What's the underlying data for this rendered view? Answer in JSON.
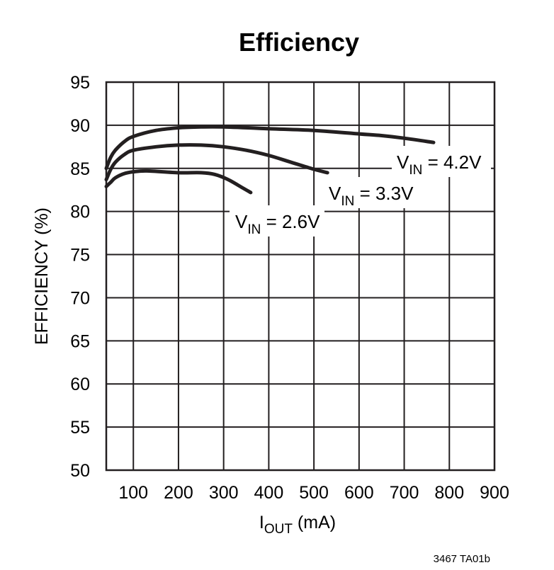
{
  "chart_data": {
    "type": "line",
    "title": "Efficiency",
    "xlabel": {
      "main": "I",
      "sub": "OUT",
      "unit": " (mA)"
    },
    "ylabel": "EFFICIENCY (%)",
    "xlim": [
      40,
      900
    ],
    "ylim": [
      50,
      95
    ],
    "xticks": [
      100,
      200,
      300,
      400,
      500,
      600,
      700,
      800,
      900
    ],
    "yticks": [
      50,
      55,
      60,
      65,
      70,
      75,
      80,
      85,
      90,
      95
    ],
    "grid": true,
    "series": [
      {
        "name": "V_IN = 4.2V",
        "label": {
          "main": "V",
          "sub": "IN",
          "value": " = 4.2V"
        },
        "points": [
          [
            40,
            85.0
          ],
          [
            50,
            86.3
          ],
          [
            60,
            87.1
          ],
          [
            80,
            88.1
          ],
          [
            100,
            88.7
          ],
          [
            150,
            89.4
          ],
          [
            200,
            89.7
          ],
          [
            250,
            89.8
          ],
          [
            300,
            89.8
          ],
          [
            400,
            89.6
          ],
          [
            500,
            89.4
          ],
          [
            600,
            89.0
          ],
          [
            650,
            88.8
          ],
          [
            700,
            88.5
          ],
          [
            765,
            88.0
          ]
        ]
      },
      {
        "name": "V_IN = 3.3V",
        "label": {
          "main": "V",
          "sub": "IN",
          "value": " = 3.3V"
        },
        "points": [
          [
            40,
            83.7
          ],
          [
            50,
            84.9
          ],
          [
            60,
            85.7
          ],
          [
            80,
            86.6
          ],
          [
            100,
            87.1
          ],
          [
            150,
            87.5
          ],
          [
            200,
            87.7
          ],
          [
            250,
            87.7
          ],
          [
            300,
            87.5
          ],
          [
            350,
            87.1
          ],
          [
            400,
            86.5
          ],
          [
            450,
            85.7
          ],
          [
            500,
            84.9
          ],
          [
            530,
            84.5
          ]
        ]
      },
      {
        "name": "V_IN = 2.6V",
        "label": {
          "main": "V",
          "sub": "IN",
          "value": " = 2.6V"
        },
        "points": [
          [
            40,
            82.9
          ],
          [
            50,
            83.4
          ],
          [
            60,
            83.9
          ],
          [
            80,
            84.4
          ],
          [
            100,
            84.6
          ],
          [
            130,
            84.7
          ],
          [
            200,
            84.5
          ],
          [
            250,
            84.5
          ],
          [
            280,
            84.3
          ],
          [
            310,
            83.7
          ],
          [
            340,
            82.8
          ],
          [
            360,
            82.2
          ]
        ]
      }
    ]
  },
  "footer": {
    "code": "3467 TA01b"
  }
}
